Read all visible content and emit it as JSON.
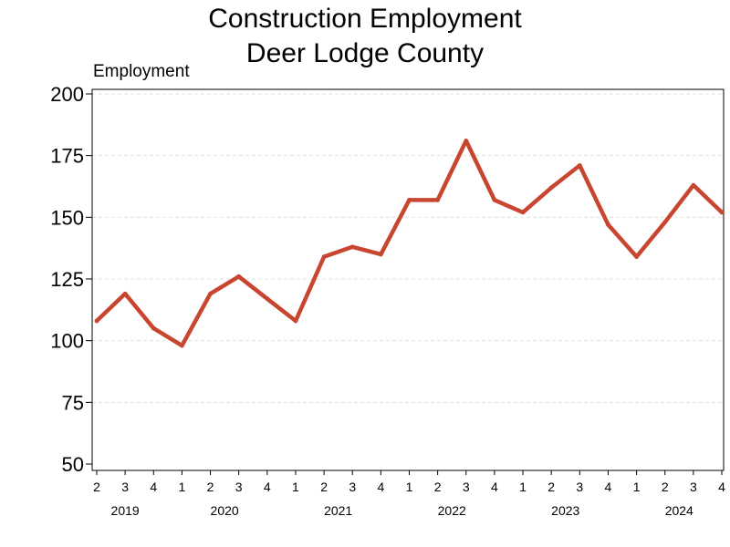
{
  "chart_data": {
    "type": "line",
    "title": [
      "Construction Employment",
      "Deer Lodge County"
    ],
    "ylabel": "Employment",
    "xlabel": "",
    "ylim": [
      50,
      200
    ],
    "yticks": [
      50,
      75,
      100,
      125,
      150,
      175,
      200
    ],
    "grid": "horizontal dashed",
    "line_color": "#c8452f",
    "x": [
      "2019 Q2",
      "2019 Q3",
      "2019 Q4",
      "2020 Q1",
      "2020 Q2",
      "2020 Q3",
      "2020 Q4",
      "2021 Q1",
      "2021 Q2",
      "2021 Q3",
      "2021 Q4",
      "2022 Q1",
      "2022 Q2",
      "2022 Q3",
      "2022 Q4",
      "2023 Q1",
      "2023 Q2",
      "2023 Q3",
      "2023 Q4",
      "2024 Q1",
      "2024 Q2",
      "2024 Q3",
      "2024 Q4"
    ],
    "quarter_labels": [
      "2",
      "3",
      "4",
      "1",
      "2",
      "3",
      "4",
      "1",
      "2",
      "3",
      "4",
      "1",
      "2",
      "3",
      "4",
      "1",
      "2",
      "3",
      "4",
      "1",
      "2",
      "3",
      "4"
    ],
    "year_labels": [
      "2019",
      "2020",
      "2021",
      "2022",
      "2023",
      "2024"
    ],
    "series": [
      {
        "values": [
          108,
          119,
          105,
          98,
          119,
          126,
          117,
          108,
          134,
          138,
          135,
          157,
          157,
          181,
          157,
          152,
          162,
          171,
          147,
          134,
          148,
          163,
          152
        ]
      }
    ]
  }
}
